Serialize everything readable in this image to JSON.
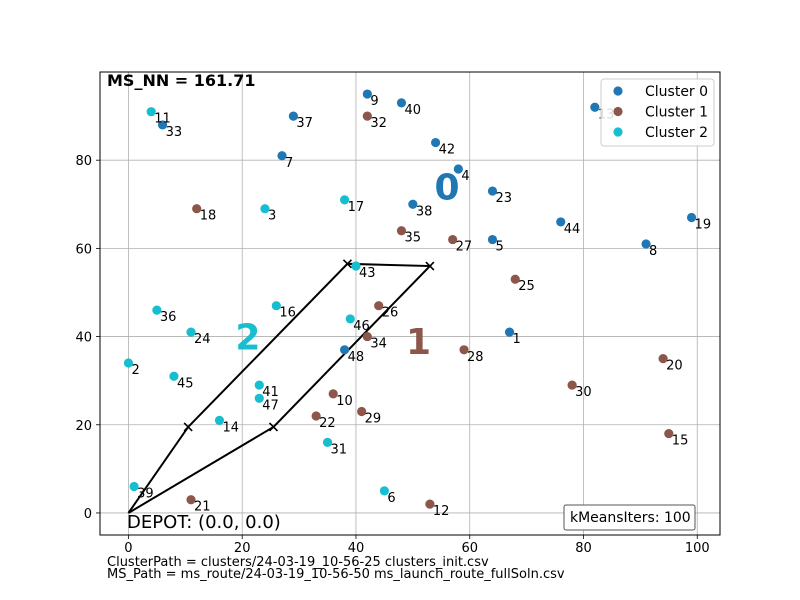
{
  "chart_data": {
    "type": "scatter",
    "title": "MS_NN = 161.71",
    "xlim": [
      -5,
      104
    ],
    "ylim": [
      -5,
      100
    ],
    "xticks": [
      0,
      20,
      40,
      60,
      80,
      100
    ],
    "yticks": [
      0,
      20,
      40,
      60,
      80
    ],
    "grid": true,
    "legend_position": "top-right",
    "colors": {
      "Cluster 0": "#1f77b4",
      "Cluster 1": "#8c564b",
      "Cluster 2": "#17becf"
    },
    "series": [
      {
        "name": "Cluster 0",
        "points": [
          {
            "id": "1",
            "x": 67,
            "y": 41
          },
          {
            "id": "4",
            "x": 58,
            "y": 78
          },
          {
            "id": "5",
            "x": 64,
            "y": 62
          },
          {
            "id": "7",
            "x": 27,
            "y": 81
          },
          {
            "id": "8",
            "x": 91,
            "y": 61
          },
          {
            "id": "9",
            "x": 42,
            "y": 95
          },
          {
            "id": "13",
            "x": 82,
            "y": 92
          },
          {
            "id": "19",
            "x": 99,
            "y": 67
          },
          {
            "id": "23",
            "x": 64,
            "y": 73
          },
          {
            "id": "33",
            "x": 6,
            "y": 88
          },
          {
            "id": "37",
            "x": 29,
            "y": 90
          },
          {
            "id": "38",
            "x": 50,
            "y": 70
          },
          {
            "id": "40",
            "x": 48,
            "y": 93
          },
          {
            "id": "42",
            "x": 54,
            "y": 84
          },
          {
            "id": "44",
            "x": 76,
            "y": 66
          },
          {
            "id": "48",
            "x": 38,
            "y": 37
          }
        ]
      },
      {
        "name": "Cluster 1",
        "points": [
          {
            "id": "10",
            "x": 36,
            "y": 27
          },
          {
            "id": "12",
            "x": 53,
            "y": 2
          },
          {
            "id": "15",
            "x": 95,
            "y": 18
          },
          {
            "id": "18",
            "x": 12,
            "y": 69
          },
          {
            "id": "20",
            "x": 94,
            "y": 35
          },
          {
            "id": "21",
            "x": 11,
            "y": 3
          },
          {
            "id": "22",
            "x": 33,
            "y": 22
          },
          {
            "id": "25",
            "x": 68,
            "y": 53
          },
          {
            "id": "26",
            "x": 44,
            "y": 47
          },
          {
            "id": "27",
            "x": 57,
            "y": 62
          },
          {
            "id": "28",
            "x": 59,
            "y": 37
          },
          {
            "id": "29",
            "x": 41,
            "y": 23
          },
          {
            "id": "30",
            "x": 78,
            "y": 29
          },
          {
            "id": "32",
            "x": 42,
            "y": 90
          },
          {
            "id": "34",
            "x": 42,
            "y": 40
          },
          {
            "id": "35",
            "x": 48,
            "y": 64
          }
        ]
      },
      {
        "name": "Cluster 2",
        "points": [
          {
            "id": "2",
            "x": 0,
            "y": 34
          },
          {
            "id": "3",
            "x": 24,
            "y": 69
          },
          {
            "id": "6",
            "x": 45,
            "y": 5
          },
          {
            "id": "11",
            "x": 4,
            "y": 91
          },
          {
            "id": "14",
            "x": 16,
            "y": 21
          },
          {
            "id": "16",
            "x": 26,
            "y": 47
          },
          {
            "id": "17",
            "x": 38,
            "y": 71
          },
          {
            "id": "24",
            "x": 11,
            "y": 41
          },
          {
            "id": "31",
            "x": 35,
            "y": 16
          },
          {
            "id": "36",
            "x": 5,
            "y": 46
          },
          {
            "id": "39",
            "x": 1,
            "y": 6
          },
          {
            "id": "41",
            "x": 23,
            "y": 29
          },
          {
            "id": "43",
            "x": 40,
            "y": 56
          },
          {
            "id": "45",
            "x": 8,
            "y": 31
          },
          {
            "id": "46",
            "x": 39,
            "y": 44
          },
          {
            "id": "47",
            "x": 23,
            "y": 26
          }
        ]
      }
    ],
    "cluster_labels": [
      {
        "text": "0",
        "x": 56,
        "y": 74,
        "series": "Cluster 0"
      },
      {
        "text": "1",
        "x": 51,
        "y": 39,
        "series": "Cluster 1"
      },
      {
        "text": "2",
        "x": 21,
        "y": 40,
        "series": "Cluster 2"
      }
    ],
    "route": [
      {
        "x": 0,
        "y": 0,
        "marker": "none"
      },
      {
        "x": 10.5,
        "y": 19.5,
        "marker": "x"
      },
      {
        "x": 38.5,
        "y": 56.5,
        "marker": "x"
      },
      {
        "x": 53,
        "y": 56,
        "marker": "x"
      },
      {
        "x": 25.5,
        "y": 19.5,
        "marker": "x"
      },
      {
        "x": 0,
        "y": 0,
        "marker": "none"
      }
    ],
    "depot": {
      "x": 0,
      "y": 0,
      "label": "DEPOT: (0.0, 0.0)"
    },
    "info_box": "kMeansIters: 100"
  },
  "footer": {
    "cluster_path": "ClusterPath = clusters/24-03-19_10-56-25 clusters_init.csv",
    "ms_path": "MS_Path = ms_route/24-03-19_10-56-50 ms_launch_route_fullSoln.csv"
  }
}
